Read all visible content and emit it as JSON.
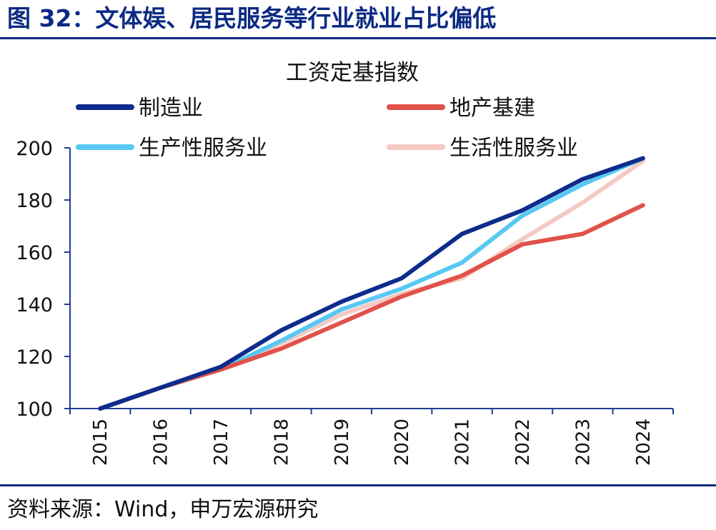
{
  "figure": {
    "title": "图 32：文体娱、居民服务等行业就业占比偏低",
    "source": "资料来源：Wind，申万宏源研究"
  },
  "chart_data": {
    "type": "line",
    "title": "工资定基指数",
    "xlabel": "",
    "ylabel": "",
    "categories": [
      "2015",
      "2016",
      "2017",
      "2018",
      "2019",
      "2020",
      "2021",
      "2022",
      "2023",
      "2024"
    ],
    "ylim": [
      100,
      200
    ],
    "yticks": [
      100,
      120,
      140,
      160,
      180,
      200
    ],
    "grid": false,
    "legend_position": "top",
    "series": [
      {
        "name": "制造业",
        "color": "#0d2c8c",
        "values": [
          100,
          108,
          116,
          130,
          141,
          150,
          167,
          176,
          188,
          196
        ]
      },
      {
        "name": "地产基建",
        "color": "#e0524a",
        "values": [
          100,
          108,
          115,
          123,
          133,
          143,
          151,
          163,
          167,
          178
        ]
      },
      {
        "name": "生产性服务业",
        "color": "#57c8f2",
        "values": [
          100,
          108,
          115,
          126,
          138,
          146,
          156,
          174,
          186,
          196
        ]
      },
      {
        "name": "生活性服务业",
        "color": "#f5c9c4",
        "values": [
          100,
          108,
          115,
          125,
          136,
          144,
          150,
          165,
          179,
          195
        ]
      }
    ]
  }
}
